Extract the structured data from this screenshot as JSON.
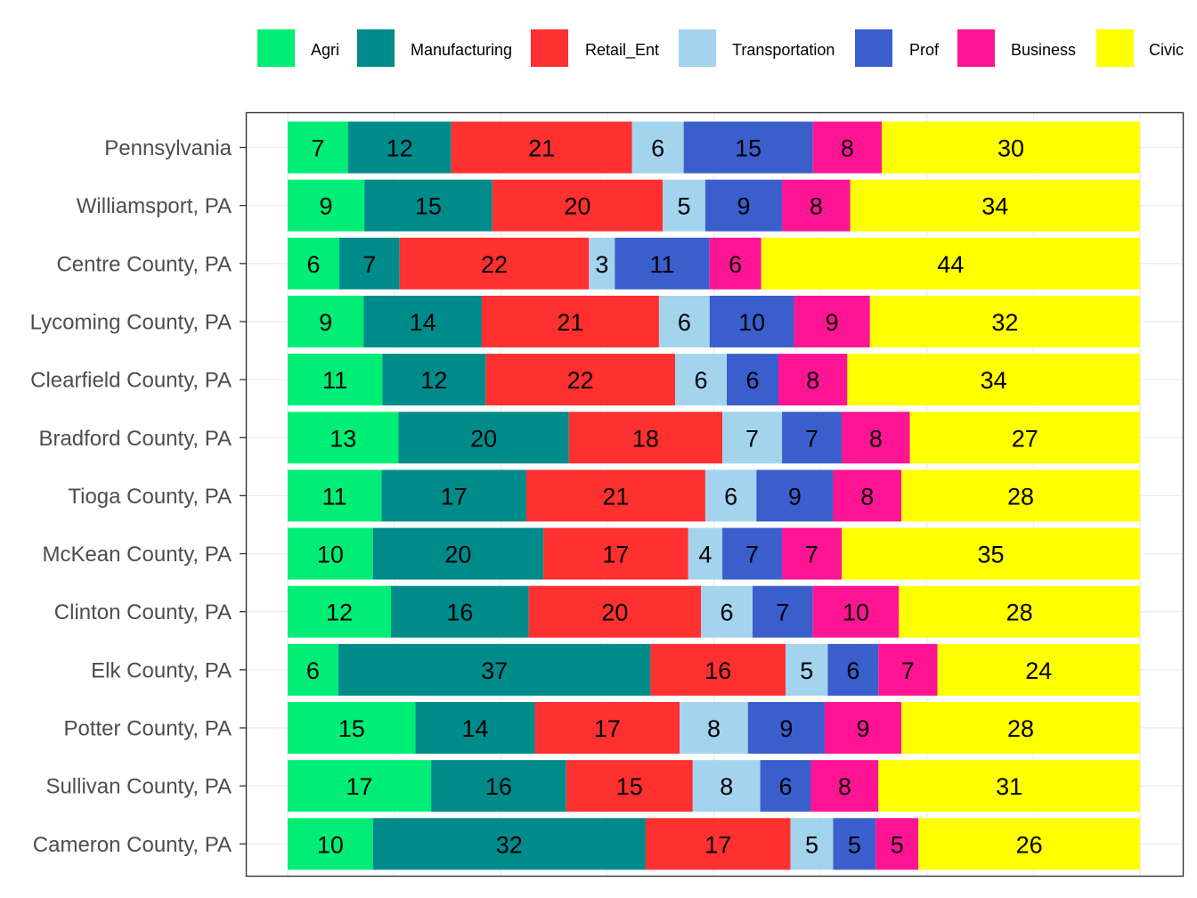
{
  "chart_data": {
    "type": "bar",
    "orientation": "horizontal",
    "stacked": true,
    "title": "",
    "xlabel": "",
    "ylabel": "",
    "xlim": [
      0,
      100
    ],
    "grid": true,
    "legend_position": "top-right",
    "categories": [
      "Pennsylvania",
      "Williamsport, PA",
      "Centre County, PA",
      "Lycoming County, PA",
      "Clearfield County, PA",
      "Bradford County, PA",
      "Tioga County, PA",
      "McKean County, PA",
      "Clinton County, PA",
      "Elk County, PA",
      "Potter County, PA",
      "Sullivan County, PA",
      "Cameron County, PA"
    ],
    "series": [
      {
        "name": "Agri",
        "color": "#00ee76",
        "values": [
          7,
          9,
          6,
          9,
          11,
          13,
          11,
          10,
          12,
          6,
          15,
          17,
          10
        ]
      },
      {
        "name": "Manufacturing",
        "color": "#008b8b",
        "values": [
          12,
          15,
          7,
          14,
          12,
          20,
          17,
          20,
          16,
          37,
          14,
          16,
          32
        ]
      },
      {
        "name": "Retail_Ent",
        "color": "#ff3030",
        "values": [
          21,
          20,
          22,
          21,
          22,
          18,
          21,
          17,
          20,
          16,
          17,
          15,
          17
        ]
      },
      {
        "name": "Transportation",
        "color": "#a4d3ee",
        "values": [
          6,
          5,
          3,
          6,
          6,
          7,
          6,
          4,
          6,
          5,
          8,
          8,
          5
        ]
      },
      {
        "name": "Prof",
        "color": "#3a5fcd",
        "values": [
          15,
          9,
          11,
          10,
          6,
          7,
          9,
          7,
          7,
          6,
          9,
          6,
          5
        ]
      },
      {
        "name": "Business",
        "color": "#ff1493",
        "values": [
          8,
          8,
          6,
          9,
          8,
          8,
          8,
          7,
          10,
          7,
          9,
          8,
          5
        ]
      },
      {
        "name": "Civic",
        "color": "#ffff00",
        "values": [
          30,
          34,
          44,
          32,
          34,
          27,
          28,
          35,
          28,
          24,
          28,
          31,
          26
        ]
      }
    ]
  }
}
